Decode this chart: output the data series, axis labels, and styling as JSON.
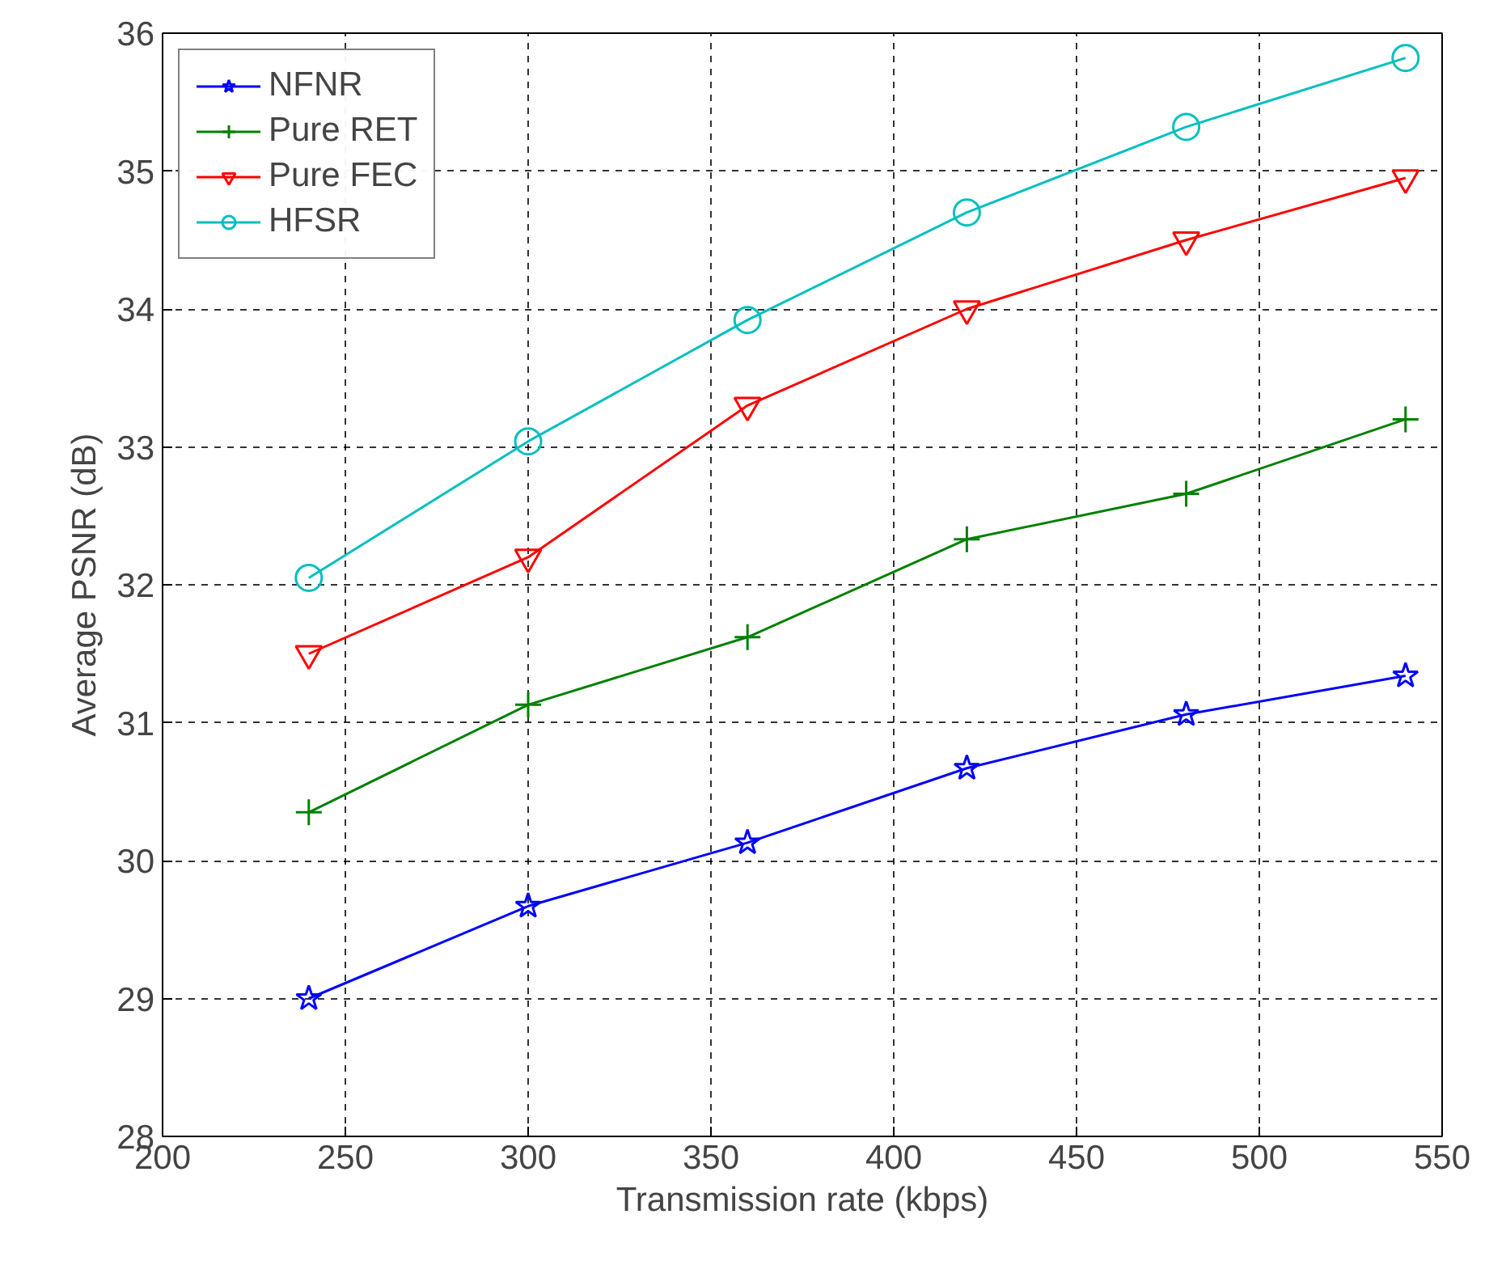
{
  "chart_data": {
    "type": "line",
    "xlabel": "Transmission rate (kbps)",
    "ylabel": "Average PSNR (dB)",
    "x": [
      240,
      300,
      360,
      420,
      480,
      540
    ],
    "series": [
      {
        "name": "NFNR",
        "color": "#0000ff",
        "marker": "star",
        "values": [
          29.0,
          29.67,
          30.13,
          30.67,
          31.06,
          31.34
        ]
      },
      {
        "name": "Pure RET",
        "color": "#008000",
        "marker": "cross",
        "values": [
          30.35,
          31.13,
          31.62,
          32.33,
          32.66,
          33.2
        ]
      },
      {
        "name": "Pure FEC",
        "color": "#ff0000",
        "marker": "triangle",
        "values": [
          31.5,
          32.2,
          33.3,
          34.0,
          34.5,
          34.95
        ]
      },
      {
        "name": "HFSR",
        "color": "#00bfbf",
        "marker": "circle",
        "values": [
          32.05,
          33.04,
          33.92,
          34.7,
          35.32,
          35.82
        ]
      }
    ],
    "xlim": [
      200,
      550
    ],
    "ylim": [
      28,
      36
    ],
    "xticks": [
      200,
      250,
      300,
      350,
      400,
      450,
      500,
      550
    ],
    "yticks": [
      28,
      29,
      30,
      31,
      32,
      33,
      34,
      35,
      36
    ],
    "grid": true,
    "legend": "top left",
    "line_style": "solid"
  }
}
